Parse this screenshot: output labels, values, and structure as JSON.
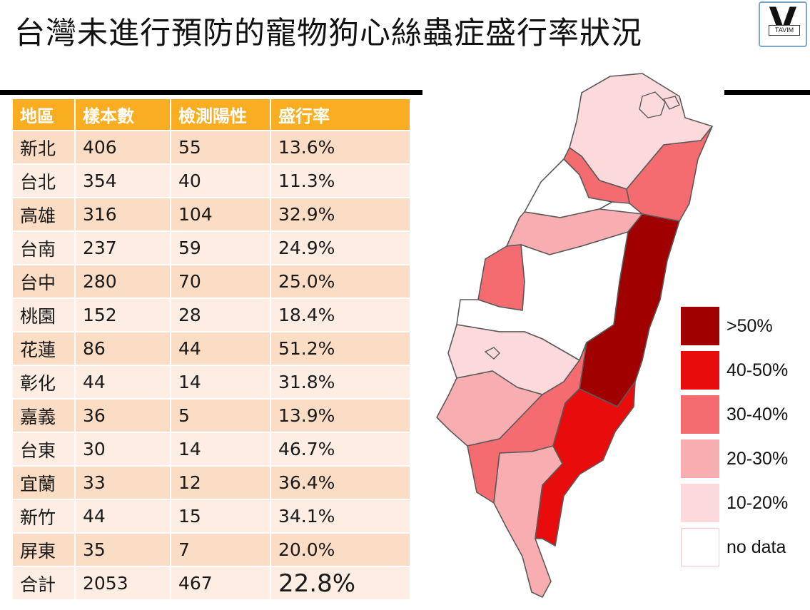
{
  "title": "台灣未進行預防的寵物狗心絲蟲症盛行率狀況",
  "logo": {
    "letter": "V",
    "sub": "TAVIM"
  },
  "chart_data": {
    "type": "table",
    "columns": [
      "地區",
      "樣本數",
      "檢測陽性",
      "盛行率"
    ],
    "rows": [
      [
        "新北",
        "406",
        "55",
        "13.6%"
      ],
      [
        "台北",
        "354",
        "40",
        "11.3%"
      ],
      [
        "高雄",
        "316",
        "104",
        "32.9%"
      ],
      [
        "台南",
        "237",
        "59",
        "24.9%"
      ],
      [
        "台中",
        "280",
        "70",
        "25.0%"
      ],
      [
        "桃園",
        "152",
        "28",
        "18.4%"
      ],
      [
        "花蓮",
        "86",
        "44",
        "51.2%"
      ],
      [
        "彰化",
        "44",
        "14",
        "31.8%"
      ],
      [
        "嘉義",
        "36",
        "5",
        "13.9%"
      ],
      [
        "台東",
        "30",
        "14",
        "46.7%"
      ],
      [
        "宜蘭",
        "33",
        "12",
        "36.4%"
      ],
      [
        "新竹",
        "44",
        "15",
        "34.1%"
      ],
      [
        "屏東",
        "35",
        "7",
        "20.0%"
      ]
    ],
    "total": [
      "合計",
      "2053",
      "467",
      "22.8%"
    ],
    "legend": [
      {
        "label": ">50%",
        "color": "#a00000"
      },
      {
        "label": "40-50%",
        "color": "#e80c0c"
      },
      {
        "label": "30-40%",
        "color": "#f46c70"
      },
      {
        "label": "20-30%",
        "color": "#f8aeb0"
      },
      {
        "label": "10-20%",
        "color": "#fcd9da"
      },
      {
        "label": "no data",
        "color": "#ffffff"
      }
    ]
  }
}
